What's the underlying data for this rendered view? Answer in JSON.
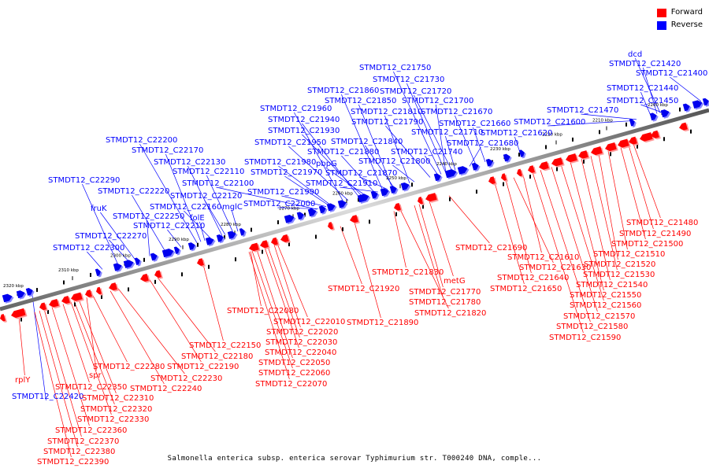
{
  "legend": {
    "forward": {
      "label": "Forward",
      "color": "#ff0000"
    },
    "reverse": {
      "label": "Reverse",
      "color": "#0000ff"
    }
  },
  "caption": "Salmonella enterica subsp. enterica serovar Typhimurium str. T000240 DNA, comple...",
  "scale_unit": "kbp",
  "scale_ticks": [
    2200,
    2210,
    2220,
    2230,
    2240,
    2250,
    2260,
    2270,
    2280,
    2290,
    2300,
    2310,
    2320
  ],
  "reverse_labels": [
    "dcd",
    "STMDT12_C21420",
    "STMDT12_C21400",
    "STMDT12_C21440",
    "STMDT12_C21450",
    "STMDT12_C21470",
    "STMDT12_C21600",
    "STMDT12_C21620",
    "STMDT12_C21660",
    "STMDT12_C21670",
    "STMDT12_C21680",
    "STMDT12_C21700",
    "STMDT12_C21710",
    "STMDT12_C21720",
    "STMDT12_C21730",
    "STMDT12_C21750",
    "STMDT12_C21740",
    "STMDT12_C21790",
    "STMDT12_C21800",
    "STMDT12_C21810",
    "STMDT12_C21840",
    "STMDT12_C21850",
    "STMDT12_C21860",
    "STMDT12_C21870",
    "STMDT12_C21880",
    "STMDT12_C21910",
    "pbpG",
    "STMDT12_C21930",
    "STMDT12_C21940",
    "STMDT12_C21950",
    "STMDT12_C21960",
    "STMDT12_C21970",
    "STMDT12_C21980",
    "STMDT12_C21990",
    "STMDT12_C22000",
    "STMDT12_C22100",
    "mglC",
    "STMDT12_C22110",
    "STMDT12_C22120",
    "STMDT12_C22130",
    "STMDT12_C22160",
    "folE",
    "STMDT12_C22170",
    "STMDT12_C22200",
    "STMDT12_C22210",
    "STMDT12_C22220",
    "STMDT12_C22250",
    "fruK",
    "STMDT12_C22270",
    "STMDT12_C22290",
    "STMDT12_C22300",
    "STMDT12_C22420"
  ],
  "forward_labels": [
    "STMDT12_C21480",
    "STMDT12_C21490",
    "STMDT12_C21500",
    "STMDT12_C21510",
    "STMDT12_C21520",
    "STMDT12_C21530",
    "STMDT12_C21540",
    "STMDT12_C21550",
    "STMDT12_C21560",
    "STMDT12_C21570",
    "STMDT12_C21580",
    "STMDT12_C21590",
    "STMDT12_C21610",
    "STMDT12_C21630",
    "STMDT12_C21640",
    "STMDT12_C21650",
    "STMDT12_C21690",
    "metG",
    "STMDT12_C21770",
    "STMDT12_C21780",
    "STMDT12_C21820",
    "STMDT12_C21830",
    "STMDT12_C21890",
    "STMDT12_C21920",
    "STMDT12_C22010",
    "STMDT12_C22020",
    "STMDT12_C22030",
    "STMDT12_C22040",
    "STMDT12_C22050",
    "STMDT12_C22060",
    "STMDT12_C22070",
    "STMDT12_C22080",
    "STMDT12_C22150",
    "STMDT12_C22180",
    "STMDT12_C22190",
    "STMDT12_C22230",
    "STMDT12_C22240",
    "STMDT12_C22280",
    "spr",
    "STMDT12_C22310",
    "STMDT12_C22320",
    "STMDT12_C22330",
    "STMDT12_C22350",
    "rplY",
    "STMDT12_C22360",
    "STMDT12_C22370",
    "STMDT12_C22380",
    "STMDT12_C22390"
  ]
}
